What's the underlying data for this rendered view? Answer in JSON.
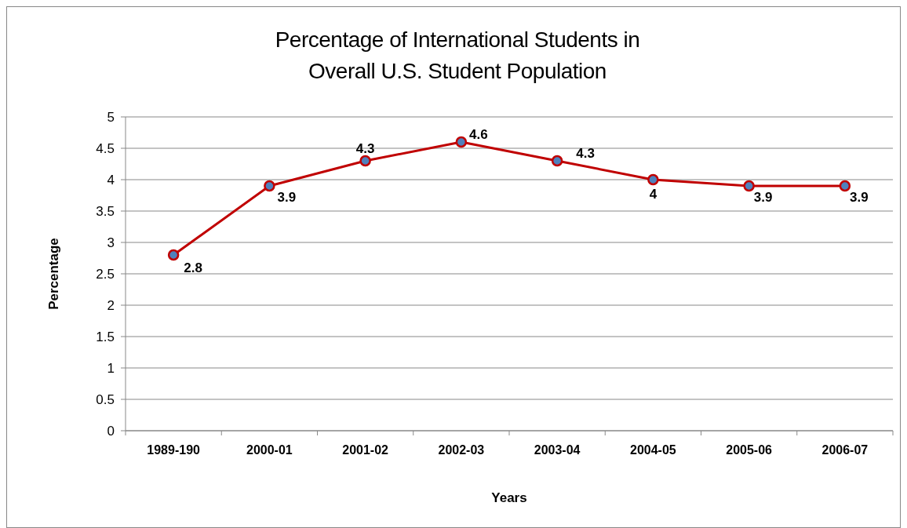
{
  "chart_data": {
    "type": "line",
    "title": "Percentage of International Students in\nOverall U.S. Student Population",
    "xlabel": "Years",
    "ylabel": "Percentage",
    "categories": [
      "1989-190",
      "2000-01",
      "2001-02",
      "2002-03",
      "2003-04",
      "2004-05",
      "2005-06",
      "2006-07"
    ],
    "series": [
      {
        "color": "#c00000",
        "values": [
          2.8,
          3.9,
          4.3,
          4.6,
          4.3,
          4,
          3.9,
          3.9
        ]
      }
    ],
    "ylim": [
      0,
      5
    ],
    "yticks": [
      0,
      0.5,
      1,
      1.5,
      2,
      2.5,
      3,
      3.5,
      4,
      4.5,
      5
    ],
    "grid": "y",
    "marker": "circle",
    "data_labels": true
  }
}
